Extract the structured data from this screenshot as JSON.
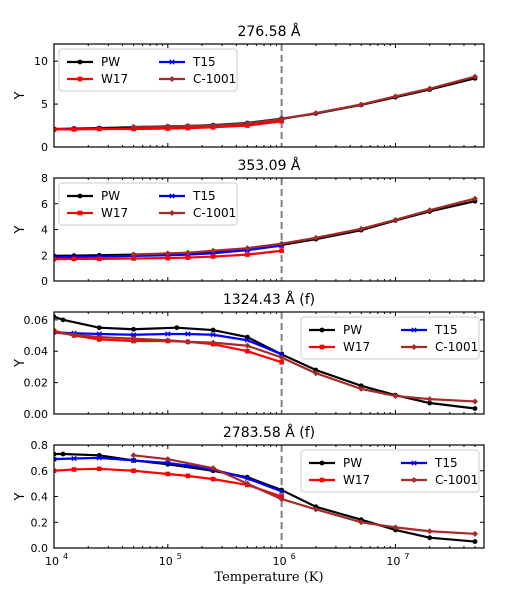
{
  "figure": {
    "xlabel": "Temperature (K)",
    "x_tick_labels": [
      "10",
      "10",
      "10",
      "10"
    ],
    "x_tick_exponents": [
      "4",
      "5",
      "6",
      "7"
    ],
    "x_tick_values": [
      10000,
      100000,
      1000000,
      10000000
    ],
    "xlim": [
      10000,
      60000000
    ],
    "xscale": "log",
    "vline_x": 1000000,
    "vline_style": "dashed-gray"
  },
  "colors": {
    "PW": "#000000",
    "T15": "#0000ff",
    "W17": "#ff0000",
    "C-1001": "#a52a2a",
    "vline": "#808080"
  },
  "chart_data": [
    {
      "type": "line",
      "title": "276.58 Å",
      "ylabel": "Y",
      "ylim": [
        0,
        12
      ],
      "y_ticks": [
        0,
        5,
        10
      ],
      "y_tick_labels": [
        "0",
        "5",
        "10"
      ],
      "legend_position": "top-left",
      "legend_columns": 2,
      "series": [
        {
          "name": "PW",
          "marker": "circle",
          "x": [
            10000,
            15000,
            25000,
            50000,
            100000,
            150000,
            250000,
            500000,
            1000000,
            2000000,
            5000000,
            10000000,
            20000000,
            50000000
          ],
          "y": [
            2.1,
            2.15,
            2.2,
            2.3,
            2.4,
            2.45,
            2.55,
            2.8,
            3.3,
            3.9,
            4.9,
            5.8,
            6.7,
            8.0
          ]
        },
        {
          "name": "T15",
          "marker": "x",
          "x": [
            10000,
            15000,
            25000,
            50000,
            100000,
            150000,
            250000,
            500000,
            1000000
          ],
          "y": [
            2.05,
            2.1,
            2.15,
            2.2,
            2.3,
            2.35,
            2.45,
            2.7,
            3.2
          ]
        },
        {
          "name": "W17",
          "marker": "square",
          "x": [
            10000,
            15000,
            25000,
            50000,
            100000,
            150000,
            250000,
            500000,
            1000000
          ],
          "y": [
            2.05,
            2.05,
            2.1,
            2.1,
            2.15,
            2.2,
            2.3,
            2.5,
            3.0
          ]
        },
        {
          "name": "C-1001",
          "marker": "diamond",
          "x": [
            50000,
            100000,
            150000,
            250000,
            500000,
            1000000,
            2000000,
            5000000,
            10000000,
            20000000,
            50000000
          ],
          "y": [
            2.35,
            2.4,
            2.45,
            2.5,
            2.75,
            3.25,
            3.95,
            4.95,
            5.9,
            6.8,
            8.2
          ]
        }
      ]
    },
    {
      "type": "line",
      "title": "353.09 Å",
      "ylabel": "Y",
      "ylim": [
        0,
        8
      ],
      "y_ticks": [
        0,
        2,
        4,
        6,
        8
      ],
      "y_tick_labels": [
        "0",
        "2",
        "4",
        "6",
        "8"
      ],
      "legend_position": "top-left",
      "legend_columns": 2,
      "series": [
        {
          "name": "PW",
          "marker": "circle",
          "x": [
            10000,
            15000,
            25000,
            50000,
            100000,
            150000,
            250000,
            500000,
            1000000,
            2000000,
            5000000,
            10000000,
            20000000,
            50000000
          ],
          "y": [
            1.95,
            1.97,
            2.0,
            2.05,
            2.1,
            2.15,
            2.25,
            2.45,
            2.8,
            3.25,
            3.95,
            4.7,
            5.4,
            6.2
          ]
        },
        {
          "name": "T15",
          "marker": "x",
          "x": [
            10000,
            15000,
            25000,
            50000,
            100000,
            150000,
            250000,
            500000,
            1000000
          ],
          "y": [
            1.85,
            1.87,
            1.9,
            1.95,
            2.0,
            2.05,
            2.15,
            2.4,
            2.75
          ]
        },
        {
          "name": "W17",
          "marker": "square",
          "x": [
            10000,
            15000,
            25000,
            50000,
            100000,
            150000,
            250000,
            500000,
            1000000
          ],
          "y": [
            1.7,
            1.72,
            1.72,
            1.75,
            1.78,
            1.82,
            1.9,
            2.05,
            2.35
          ]
        },
        {
          "name": "C-1001",
          "marker": "diamond",
          "x": [
            50000,
            100000,
            150000,
            250000,
            500000,
            1000000,
            2000000,
            5000000,
            10000000,
            20000000,
            50000000
          ],
          "y": [
            2.05,
            2.15,
            2.2,
            2.35,
            2.55,
            2.9,
            3.35,
            4.05,
            4.75,
            5.5,
            6.4
          ]
        }
      ]
    },
    {
      "type": "line",
      "title": "1324.43 Å (f)",
      "ylabel": "Y",
      "ylim": [
        0,
        0.065
      ],
      "y_ticks": [
        0,
        0.02,
        0.04,
        0.06
      ],
      "y_tick_labels": [
        "0.00",
        "0.02",
        "0.04",
        "0.06"
      ],
      "legend_position": "top-right",
      "legend_columns": 2,
      "series": [
        {
          "name": "PW",
          "marker": "circle",
          "x": [
            10000,
            12000,
            25000,
            50000,
            120000,
            250000,
            500000,
            1000000,
            2000000,
            5000000,
            10000000,
            20000000,
            50000000
          ],
          "y": [
            0.062,
            0.06,
            0.055,
            0.054,
            0.055,
            0.0535,
            0.049,
            0.038,
            0.028,
            0.018,
            0.012,
            0.007,
            0.0035
          ]
        },
        {
          "name": "T15",
          "marker": "x",
          "x": [
            10000,
            15000,
            25000,
            50000,
            100000,
            150000,
            250000,
            500000,
            1000000
          ],
          "y": [
            0.052,
            0.0515,
            0.051,
            0.0505,
            0.051,
            0.051,
            0.0505,
            0.047,
            0.038
          ]
        },
        {
          "name": "W17",
          "marker": "square",
          "x": [
            10000,
            15000,
            25000,
            50000,
            100000,
            150000,
            250000,
            500000,
            1000000
          ],
          "y": [
            0.053,
            0.05,
            0.0475,
            0.0465,
            0.0465,
            0.046,
            0.0445,
            0.04,
            0.033
          ]
        },
        {
          "name": "C-1001",
          "marker": "diamond",
          "x": [
            10000,
            15000,
            25000,
            50000,
            100000,
            150000,
            250000,
            500000,
            1000000,
            2000000,
            5000000,
            10000000,
            20000000,
            50000000
          ],
          "y": [
            0.052,
            0.0505,
            0.049,
            0.048,
            0.047,
            0.046,
            0.0455,
            0.0435,
            0.036,
            0.026,
            0.016,
            0.0115,
            0.0095,
            0.008
          ]
        }
      ]
    },
    {
      "type": "line",
      "title": "2783.58 Å (f)",
      "ylabel": "Y",
      "ylim": [
        0,
        0.8
      ],
      "y_ticks": [
        0,
        0.2,
        0.4,
        0.6,
        0.8
      ],
      "y_tick_labels": [
        "0.0",
        "0.2",
        "0.4",
        "0.6",
        "0.8"
      ],
      "legend_position": "top-right",
      "legend_columns": 2,
      "series": [
        {
          "name": "PW",
          "marker": "circle",
          "x": [
            10000,
            12000,
            25000,
            50000,
            100000,
            250000,
            500000,
            1000000,
            2000000,
            5000000,
            10000000,
            20000000,
            50000000
          ],
          "y": [
            0.73,
            0.73,
            0.72,
            0.68,
            0.65,
            0.6,
            0.55,
            0.45,
            0.32,
            0.22,
            0.14,
            0.08,
            0.05
          ]
        },
        {
          "name": "T15",
          "marker": "x",
          "x": [
            10000,
            15000,
            25000,
            50000,
            100000,
            150000,
            250000,
            500000,
            1000000
          ],
          "y": [
            0.69,
            0.695,
            0.7,
            0.68,
            0.66,
            0.64,
            0.61,
            0.54,
            0.44
          ]
        },
        {
          "name": "W17",
          "marker": "square",
          "x": [
            10000,
            15000,
            25000,
            50000,
            100000,
            150000,
            250000,
            500000,
            1000000
          ],
          "y": [
            0.6,
            0.61,
            0.615,
            0.6,
            0.575,
            0.56,
            0.535,
            0.49,
            0.4
          ]
        },
        {
          "name": "C-1001",
          "marker": "diamond",
          "x": [
            50000,
            100000,
            250000,
            500000,
            1000000,
            2000000,
            5000000,
            10000000,
            20000000,
            50000000
          ],
          "y": [
            0.72,
            0.69,
            0.62,
            0.5,
            0.38,
            0.3,
            0.2,
            0.16,
            0.13,
            0.11
          ]
        }
      ]
    }
  ]
}
